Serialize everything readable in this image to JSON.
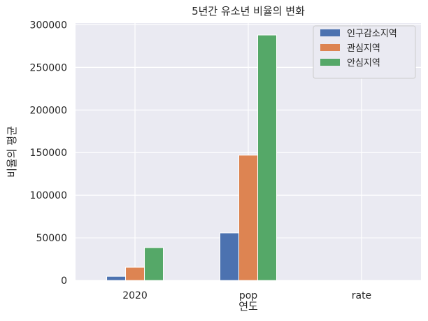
{
  "chart_data": {
    "type": "bar",
    "title": "5년간 유소년 비율의 변화",
    "xlabel": "연도",
    "ylabel": "비율의 평균",
    "categories": [
      "2020",
      "pop",
      "rate"
    ],
    "series": [
      {
        "name": "인구감소지역",
        "color": "#4c72b0",
        "values": [
          4800,
          55800,
          0.1
        ]
      },
      {
        "name": "관심지역",
        "color": "#dd8452",
        "values": [
          15500,
          147000,
          0.12
        ]
      },
      {
        "name": "안심지역",
        "color": "#55a868",
        "values": [
          38500,
          288000,
          0.13
        ]
      }
    ],
    "ylim": [
      0,
      302000
    ],
    "yticks": [
      0,
      50000,
      100000,
      150000,
      200000,
      250000,
      300000
    ],
    "grid": true,
    "legend_position": "top-right"
  }
}
